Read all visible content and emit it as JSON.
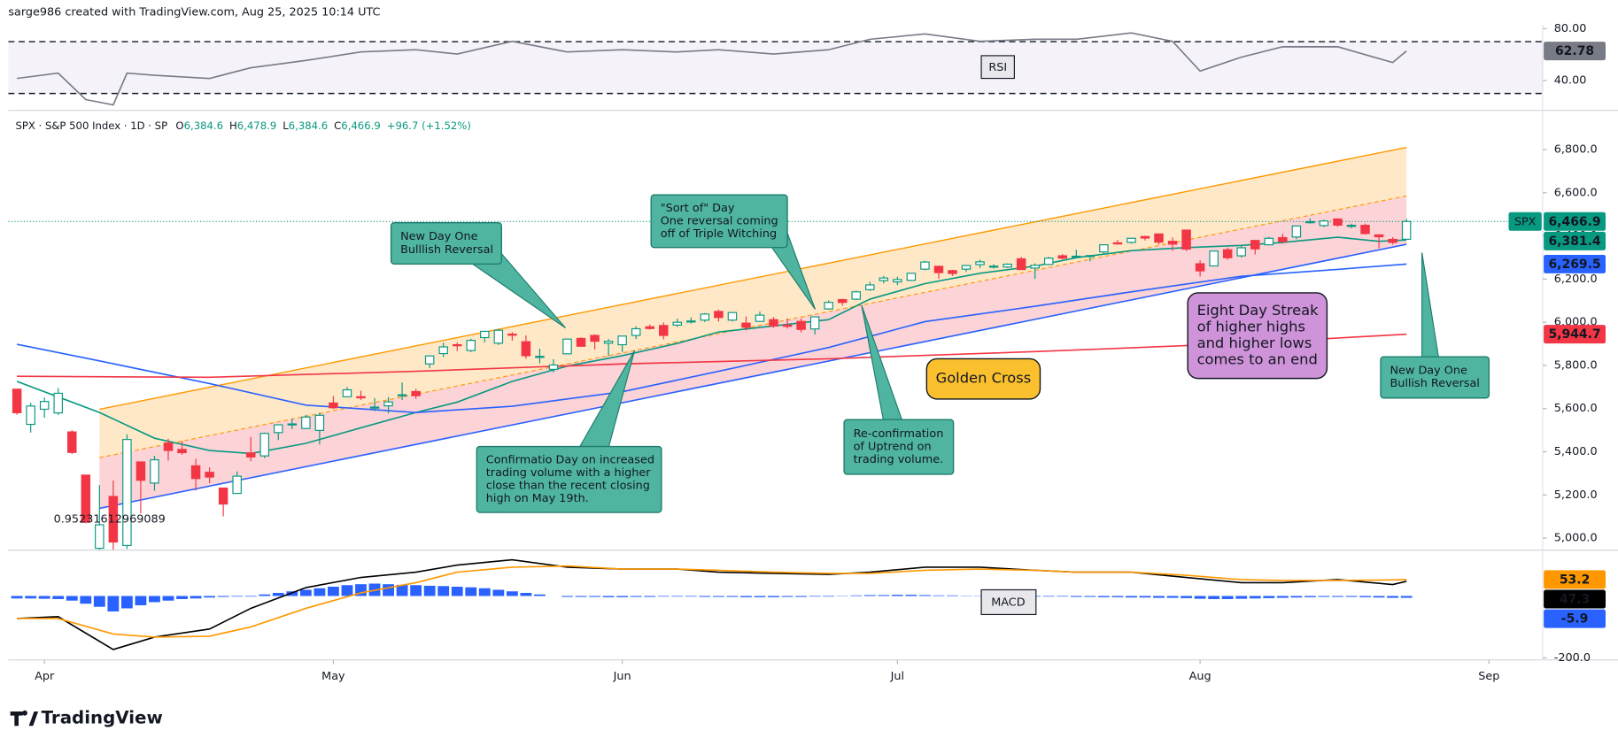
{
  "header": {
    "credit": "sarge986 created with TradingView.com, Aug 25, 2025 10:14 UTC",
    "symbol": "SPX · S&P 500 Index · 1D · SP",
    "ohlc": [
      {
        "key": "O",
        "value": "6,384.6"
      },
      {
        "key": "H",
        "value": "6,478.9"
      },
      {
        "key": "L",
        "value": "6,384.6"
      },
      {
        "key": "C",
        "value": "6,466.9"
      }
    ],
    "change": "+96.7 (+1.52%)"
  },
  "brand": "TradingView",
  "annotations": [
    {
      "style": "teal",
      "lines": [
        "New Day One",
        "Bulllish Reversal"
      ]
    },
    {
      "style": "teal",
      "lines": [
        "\"Sort of\" Day",
        "One reversal coming",
        "off of Triple Witching"
      ]
    },
    {
      "style": "teal",
      "lines": [
        "Confirmatio Day on increased",
        "trading volume with a higher",
        "close than the recent closing",
        "high on May 19th."
      ]
    },
    {
      "style": "teal",
      "lines": [
        "Re-confirmation",
        "of Uptrend on",
        "trading volume."
      ]
    },
    {
      "style": "orange",
      "lines": [
        "Golden Cross"
      ]
    },
    {
      "style": "purple",
      "lines": [
        "Eight Day Streak",
        "of higher highs",
        "and higher lows",
        "comes to an end"
      ]
    },
    {
      "style": "teal",
      "lines": [
        "New Day One",
        "Bullish Reversal"
      ]
    }
  ],
  "chart_data": [
    {
      "type": "candlestick",
      "symbol_tag": "SPX",
      "up_color": "#089981",
      "down_color": "#f23645",
      "close_label": "6,466.9",
      "fib_text": "0.95231612969089",
      "open": [
        5690,
        5527,
        5597,
        5580,
        5492,
        5292,
        4953,
        5193,
        4966,
        5353,
        5255,
        5441,
        5411,
        5335,
        5305,
        5232,
        5207,
        5395,
        5381,
        5489,
        5529,
        5508,
        5499,
        5626,
        5655,
        5655,
        5605,
        5613,
        5660,
        5679,
        5807,
        5855,
        5896,
        5869,
        5929,
        5903,
        5945,
        5910,
        5842,
        5782,
        5854,
        5925,
        5939,
        5903,
        5896,
        5939,
        5979,
        5985,
        5987,
        6005,
        6010,
        6050,
        6010,
        5996,
        6004,
        6012,
        5987,
        6004,
        5969,
        6062,
        6105,
        6107,
        6151,
        6193,
        6187,
        6194,
        6246,
        6259,
        6239,
        6246,
        6267,
        6256,
        6256,
        6294,
        6251,
        6268,
        6308,
        6304,
        6307,
        6326,
        6368,
        6370,
        6397,
        6409,
        6375,
        6427,
        6271,
        6261,
        6336,
        6308,
        6379,
        6359,
        6392,
        6395,
        6462,
        6448,
        6478,
        6446,
        6449,
        6405,
        6384,
        6384.6
      ],
      "high": [
        5690,
        5627,
        5651,
        5695,
        5500,
        5292,
        5246,
        5267,
        5481,
        5353,
        5381,
        5460,
        5450,
        5367,
        5328,
        5233,
        5309,
        5469,
        5489,
        5528,
        5553,
        5571,
        5581,
        5659,
        5700,
        5683,
        5649,
        5654,
        5721,
        5692,
        5847,
        5906,
        5906,
        5924,
        5959,
        5969,
        5954,
        5939,
        5878,
        5829,
        5924,
        5930,
        5944,
        5922,
        5937,
        5981,
        5990,
        5999,
        6017,
        6022,
        6043,
        6059,
        6045,
        6027,
        6050,
        6024,
        6018,
        6018,
        6025,
        6101,
        6109,
        6146,
        6187,
        6215,
        6211,
        6228,
        6284,
        6263,
        6243,
        6266,
        6290,
        6269,
        6273,
        6303,
        6273,
        6303,
        6316,
        6336,
        6310,
        6360,
        6381,
        6389,
        6401,
        6410,
        6393,
        6427,
        6287,
        6330,
        6346,
        6353,
        6379,
        6396,
        6410,
        6446,
        6481,
        6475,
        6482,
        6457,
        6457,
        6407,
        6394,
        6478.9
      ],
      "low": [
        5572,
        5489,
        5558,
        5571,
        5390,
        5069,
        4835,
        4910,
        4950,
        5115,
        5220,
        5359,
        5386,
        5220,
        5255,
        5101,
        5207,
        5356,
        5371,
        5455,
        5505,
        5505,
        5434,
        5598,
        5652,
        5640,
        5588,
        5578,
        5640,
        5645,
        5787,
        5839,
        5867,
        5862,
        5907,
        5895,
        5915,
        5831,
        5810,
        5768,
        5854,
        5886,
        5874,
        5844,
        5862,
        5922,
        5966,
        5921,
        5978,
        5994,
        6001,
        6003,
        6004,
        5963,
        6004,
        5974,
        5971,
        5953,
        5943,
        6058,
        6077,
        6103,
        6145,
        6180,
        6172,
        6191,
        6241,
        6201,
        6215,
        6234,
        6251,
        6249,
        6251,
        6243,
        6201,
        6265,
        6291,
        6303,
        6282,
        6317,
        6360,
        6364,
        6379,
        6360,
        6331,
        6330,
        6212,
        6261,
        6290,
        6300,
        6314,
        6356,
        6365,
        6385,
        6457,
        6441,
        6442,
        6435,
        6407,
        6343,
        6360,
        6384.6
      ],
      "close": [
        5581,
        5612,
        5633,
        5671,
        5397,
        5074,
        5062,
        4982,
        5457,
        5268,
        5363,
        5406,
        5396,
        5276,
        5283,
        5158,
        5287,
        5376,
        5485,
        5525,
        5529,
        5561,
        5569,
        5604,
        5687,
        5650,
        5607,
        5631,
        5664,
        5660,
        5844,
        5886,
        5892,
        5916,
        5958,
        5963,
        5940,
        5845,
        5842,
        5802,
        5922,
        5889,
        5912,
        5912,
        5936,
        5970,
        5971,
        5939,
        6000,
        6006,
        6038,
        6022,
        6045,
        5977,
        6033,
        5983,
        5981,
        5967,
        6025,
        6092,
        6092,
        6141,
        6173,
        6205,
        6198,
        6227,
        6279,
        6230,
        6226,
        6263,
        6280,
        6260,
        6269,
        6244,
        6264,
        6297,
        6297,
        6306,
        6309,
        6359,
        6363,
        6389,
        6390,
        6371,
        6362,
        6339,
        6238,
        6330,
        6299,
        6345,
        6340,
        6389,
        6374,
        6446,
        6466,
        6469,
        6450,
        6449,
        6411,
        6396,
        6370,
        6466.9
      ],
      "lines": [
        {
          "color": "#089981",
          "x": [
            0,
            3,
            6,
            10,
            14,
            17,
            21,
            25,
            29,
            32,
            36,
            40,
            44,
            48,
            51,
            55,
            59,
            62,
            66,
            70,
            74,
            77,
            81,
            85,
            89,
            92,
            96,
            99,
            101
          ],
          "values": [
            5726,
            5654,
            5582,
            5463,
            5406,
            5392,
            5439,
            5511,
            5582,
            5630,
            5726,
            5797,
            5845,
            5902,
            5955,
            5983,
            6012,
            6107,
            6179,
            6227,
            6260,
            6299,
            6332,
            6346,
            6356,
            6370,
            6394,
            6375,
            6381.4
          ],
          "last_label": "6,381.4"
        },
        {
          "color": "#2962ff",
          "x": [
            0,
            6,
            14,
            21,
            29,
            36,
            44,
            51,
            59,
            66,
            74,
            81,
            89,
            96,
            101
          ],
          "values": [
            5898,
            5821,
            5716,
            5616,
            5582,
            5611,
            5678,
            5773,
            5883,
            6003,
            6074,
            6141,
            6213,
            6245,
            6269.5
          ],
          "last_label": "6,269.5"
        },
        {
          "color": "#f23645",
          "x": [
            0,
            14,
            29,
            44,
            59,
            74,
            89,
            101
          ],
          "values": [
            5750,
            5745,
            5773,
            5807,
            5831,
            5864,
            5902,
            5944.7
          ],
          "last_label": "5,944.7"
        }
      ],
      "channel": {
        "x": [
          6,
          101
        ],
        "upper": [
          5597,
          6810
        ],
        "middle": [
          5373,
          6585
        ],
        "lower": [
          5138,
          6361
        ],
        "color": "#ff9800",
        "lower_color": "#2962ff"
      },
      "xlim": [
        -0.63,
        110.9
      ],
      "ylim": [
        4947,
        6977
      ],
      "xticks": [
        {
          "value": 2,
          "label": "Apr"
        },
        {
          "value": 23,
          "label": "May"
        },
        {
          "value": 44,
          "label": "Jun"
        },
        {
          "value": 64,
          "label": "Jul"
        },
        {
          "value": 86,
          "label": "Aug"
        },
        {
          "value": 107,
          "label": "Sep"
        }
      ],
      "yticks": [
        {
          "value": 5000,
          "label": "5,000.0"
        },
        {
          "value": 5200,
          "label": "5,200.0"
        },
        {
          "value": 5400,
          "label": "5,400.0"
        },
        {
          "value": 5600,
          "label": "5,600.0"
        },
        {
          "value": 5800,
          "label": "5,800.0"
        },
        {
          "value": 6000,
          "label": "6,000.0"
        },
        {
          "value": 6200,
          "label": "6,200.0"
        },
        {
          "value": 6400,
          "label": "6,400.0"
        },
        {
          "value": 6600,
          "label": "6,600.0"
        },
        {
          "value": 6800,
          "label": "6,800.0"
        }
      ]
    },
    {
      "type": "line",
      "title": "RSI",
      "color": "#787b86",
      "band_color": "#7e57c2",
      "x": [
        0,
        3,
        5,
        7,
        8,
        10,
        14,
        17,
        21,
        25,
        29,
        32,
        36,
        40,
        44,
        48,
        51,
        55,
        59,
        62,
        66,
        70,
        74,
        77,
        81,
        84,
        86,
        89,
        92,
        96,
        100,
        101
      ],
      "values": [
        41.6,
        45.7,
        25.3,
        21.2,
        45.7,
        44,
        41.6,
        49.8,
        55.5,
        62,
        63.7,
        60.4,
        70.2,
        62,
        63.7,
        62,
        63.7,
        60.4,
        63.7,
        71.8,
        75.9,
        70.2,
        71.8,
        71.8,
        76.7,
        70.2,
        47.3,
        58,
        66,
        66,
        53.9,
        62.78
      ],
      "last_label": "62.78",
      "levels": [
        30,
        70
      ],
      "xlim": [
        -0.63,
        110.9
      ],
      "ylim": [
        17,
        83
      ],
      "yticks": [
        {
          "value": 40,
          "label": "40.00"
        },
        {
          "value": 80,
          "label": "80.00"
        }
      ]
    },
    {
      "type": "macd",
      "title": "MACD",
      "xlim": [
        -0.63,
        110.9
      ],
      "ylim": [
        -206.7,
        146.7
      ],
      "yticks": [
        {
          "value": -200,
          "label": "-200.0"
        }
      ],
      "histogram": {
        "color": "#2962ff",
        "last_label": "-5.9",
        "values": [
          -8,
          -8,
          -9,
          -10,
          -15,
          -25,
          -35,
          -50,
          -40,
          -30,
          -20,
          -15,
          -10,
          -8,
          -5,
          -3,
          -2,
          -2,
          5,
          10,
          15,
          20,
          25,
          30,
          35,
          38,
          40,
          38,
          36,
          35,
          33,
          32,
          30,
          28,
          25,
          20,
          15,
          10,
          5,
          0,
          -3,
          -3,
          -3,
          -4,
          -4,
          -3,
          -3,
          -2,
          -2,
          -2,
          -3,
          -3,
          -3,
          -4,
          -4,
          -4,
          -3,
          -3,
          -2,
          -2,
          -1,
          2,
          3,
          3,
          4,
          4,
          3,
          2,
          2,
          1,
          1,
          0,
          -1,
          -1,
          -2,
          -2,
          -2,
          -3,
          -3,
          -4,
          -4,
          -5,
          -5,
          -6,
          -6,
          -7,
          -9,
          -10,
          -10,
          -9,
          -8,
          -7,
          -6,
          -5,
          -4,
          -3,
          -3,
          -3,
          -4,
          -5,
          -6,
          -5.9
        ]
      },
      "macd": {
        "color": "#000000",
        "last_label": "47.3",
        "x": [
          0,
          3,
          7,
          10,
          14,
          17,
          21,
          25,
          29,
          32,
          36,
          40,
          44,
          48,
          51,
          55,
          59,
          62,
          66,
          70,
          74,
          77,
          81,
          85,
          89,
          92,
          96,
          100,
          101
        ],
        "values": [
          -73,
          -67,
          -173,
          -133,
          -107,
          -40,
          27,
          60,
          77,
          100,
          117,
          93,
          87,
          87,
          77,
          73,
          70,
          77,
          93,
          93,
          83,
          77,
          77,
          60,
          43,
          43,
          53,
          37,
          47.3
        ]
      },
      "signal": {
        "color": "#ff9800",
        "last_label": "53.2",
        "x": [
          0,
          3,
          7,
          10,
          14,
          17,
          21,
          25,
          29,
          32,
          36,
          40,
          44,
          48,
          51,
          55,
          59,
          62,
          66,
          70,
          74,
          77,
          81,
          85,
          89,
          92,
          96,
          100,
          101
        ],
        "values": [
          -73,
          -73,
          -123,
          -133,
          -130,
          -100,
          -40,
          10,
          43,
          77,
          93,
          97,
          87,
          87,
          83,
          77,
          73,
          73,
          83,
          87,
          83,
          77,
          77,
          67,
          53,
          50,
          50,
          52,
          53.2
        ]
      }
    }
  ]
}
